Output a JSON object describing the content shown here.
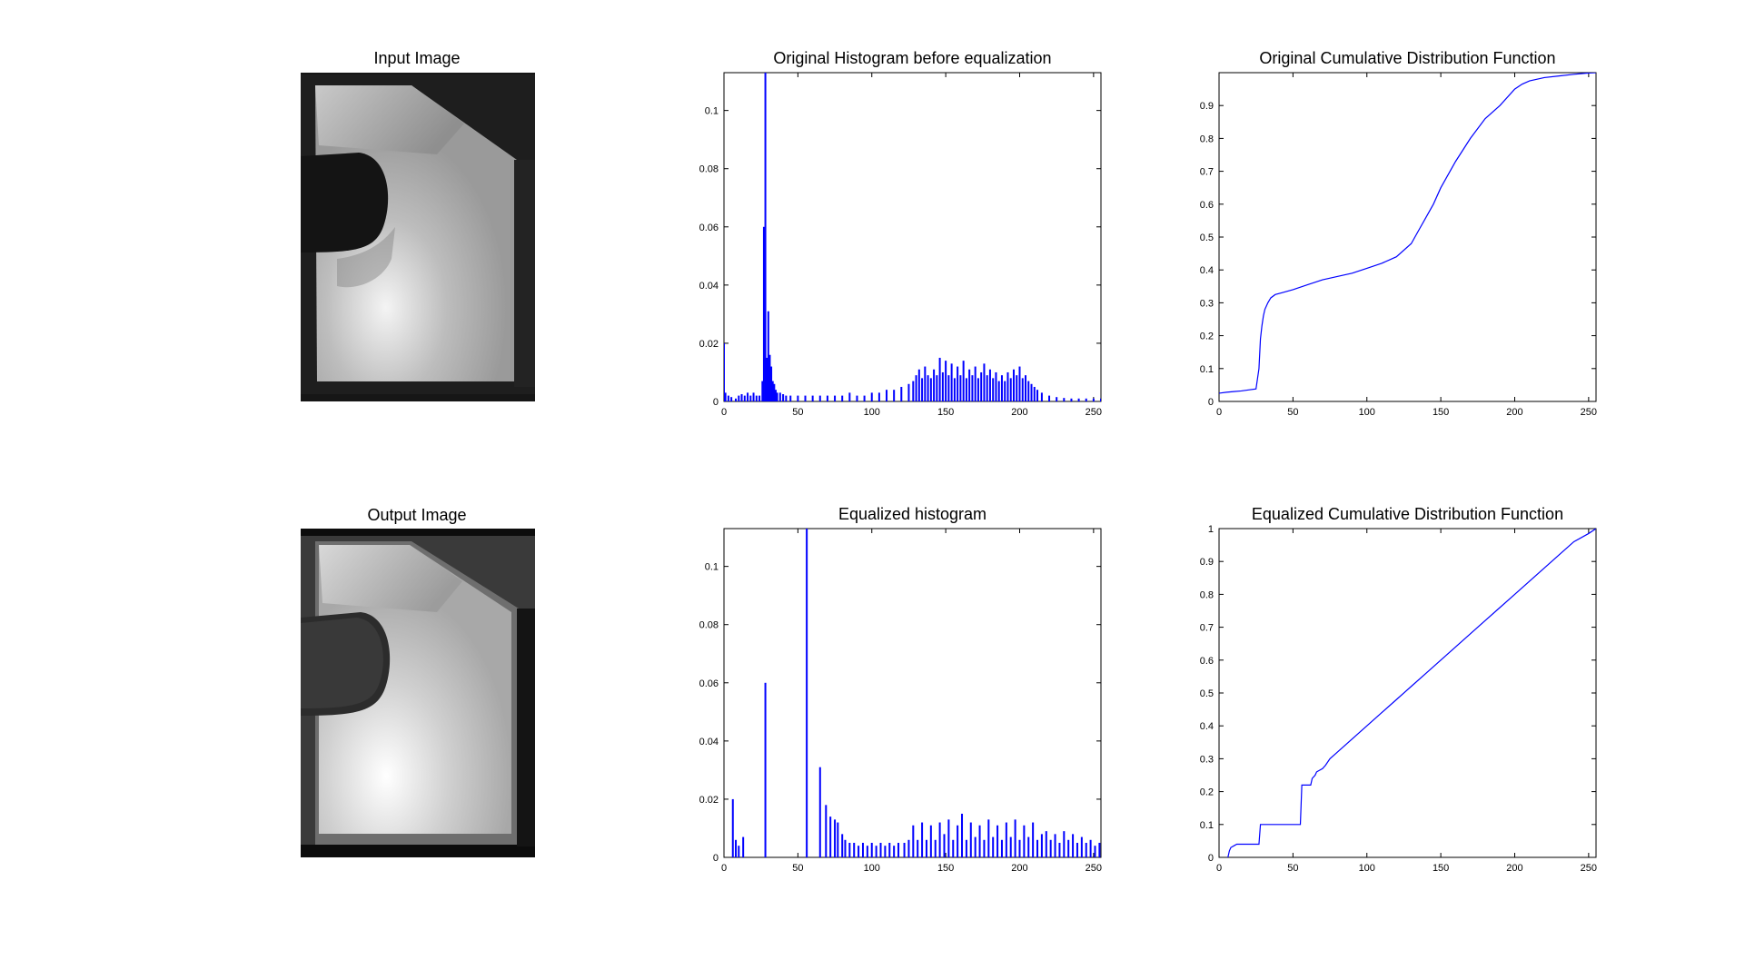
{
  "figure": {
    "panels": [
      {
        "kind": "image",
        "title": "Input Image",
        "variant": "input"
      },
      {
        "kind": "chart",
        "chart_index": 0
      },
      {
        "kind": "chart",
        "chart_index": 1
      },
      {
        "kind": "image",
        "title": "Output Image",
        "variant": "output"
      },
      {
        "kind": "chart",
        "chart_index": 2
      },
      {
        "kind": "chart",
        "chart_index": 3
      }
    ]
  },
  "colors": {
    "series": "#0000ff",
    "axis": "#000000",
    "background": "#ffffff"
  },
  "chart_data": [
    {
      "type": "bar",
      "title": "Original Histogram before equalization",
      "xlim": [
        0,
        255
      ],
      "ylim": [
        0,
        0.113
      ],
      "xticks": [
        0,
        50,
        100,
        150,
        200,
        250
      ],
      "yticks": [
        0,
        0.02,
        0.04,
        0.06,
        0.08,
        0.1
      ],
      "ytick_labels": [
        "0",
        "0.02",
        "0.04",
        "0.06",
        "0.08",
        "0.1"
      ],
      "x": [
        0,
        1,
        3,
        5,
        8,
        10,
        12,
        14,
        16,
        18,
        20,
        22,
        24,
        26,
        27,
        28,
        29,
        30,
        31,
        32,
        33,
        34,
        35,
        36,
        38,
        40,
        42,
        45,
        50,
        55,
        60,
        65,
        70,
        75,
        80,
        85,
        90,
        95,
        100,
        105,
        110,
        115,
        120,
        125,
        128,
        130,
        132,
        134,
        136,
        138,
        140,
        142,
        144,
        146,
        148,
        150,
        152,
        154,
        156,
        158,
        160,
        162,
        164,
        166,
        168,
        170,
        172,
        174,
        176,
        178,
        180,
        182,
        184,
        186,
        188,
        190,
        192,
        194,
        196,
        198,
        200,
        202,
        204,
        206,
        208,
        210,
        212,
        215,
        220,
        225,
        230,
        235,
        240,
        245,
        250,
        255
      ],
      "values": [
        0.02,
        0.003,
        0.002,
        0.0015,
        0.001,
        0.002,
        0.0025,
        0.002,
        0.003,
        0.002,
        0.003,
        0.002,
        0.002,
        0.007,
        0.06,
        0.113,
        0.015,
        0.031,
        0.016,
        0.012,
        0.007,
        0.006,
        0.004,
        0.003,
        0.003,
        0.0025,
        0.002,
        0.002,
        0.002,
        0.002,
        0.002,
        0.002,
        0.002,
        0.002,
        0.002,
        0.003,
        0.002,
        0.002,
        0.003,
        0.003,
        0.004,
        0.004,
        0.005,
        0.006,
        0.007,
        0.009,
        0.011,
        0.008,
        0.012,
        0.009,
        0.008,
        0.011,
        0.009,
        0.015,
        0.01,
        0.014,
        0.009,
        0.013,
        0.008,
        0.012,
        0.009,
        0.014,
        0.008,
        0.011,
        0.009,
        0.012,
        0.008,
        0.01,
        0.013,
        0.009,
        0.011,
        0.008,
        0.01,
        0.007,
        0.009,
        0.007,
        0.01,
        0.008,
        0.011,
        0.009,
        0.012,
        0.008,
        0.009,
        0.007,
        0.006,
        0.005,
        0.004,
        0.003,
        0.002,
        0.0015,
        0.0012,
        0.001,
        0.001,
        0.001,
        0.001,
        0.001
      ]
    },
    {
      "type": "line",
      "title": "Original Cumulative Distribution Function",
      "xlim": [
        0,
        255
      ],
      "ylim": [
        0,
        1
      ],
      "xticks": [
        0,
        50,
        100,
        150,
        200,
        250
      ],
      "yticks": [
        0,
        0.1,
        0.2,
        0.3,
        0.4,
        0.5,
        0.6,
        0.7,
        0.8,
        0.9
      ],
      "ytick_labels": [
        "0",
        "0.1",
        "0.2",
        "0.3",
        "0.4",
        "0.5",
        "0.6",
        "0.7",
        "0.8",
        "0.9"
      ],
      "x": [
        0,
        5,
        10,
        15,
        20,
        25,
        27,
        28,
        29,
        30,
        31,
        33,
        35,
        38,
        42,
        50,
        60,
        70,
        80,
        90,
        100,
        110,
        120,
        130,
        135,
        140,
        145,
        150,
        160,
        170,
        180,
        190,
        200,
        205,
        210,
        220,
        230,
        240,
        250,
        255
      ],
      "values": [
        0.025,
        0.028,
        0.03,
        0.032,
        0.035,
        0.038,
        0.1,
        0.19,
        0.23,
        0.26,
        0.28,
        0.3,
        0.315,
        0.325,
        0.33,
        0.34,
        0.355,
        0.37,
        0.38,
        0.39,
        0.405,
        0.42,
        0.44,
        0.48,
        0.52,
        0.56,
        0.6,
        0.65,
        0.73,
        0.8,
        0.86,
        0.9,
        0.95,
        0.965,
        0.975,
        0.985,
        0.99,
        0.995,
        0.999,
        1.0
      ]
    },
    {
      "type": "bar",
      "title": "Equalized histogram",
      "xlim": [
        0,
        255
      ],
      "ylim": [
        0,
        0.113
      ],
      "xticks": [
        0,
        50,
        100,
        150,
        200,
        250
      ],
      "yticks": [
        0,
        0.02,
        0.04,
        0.06,
        0.08,
        0.1
      ],
      "ytick_labels": [
        "0",
        "0.02",
        "0.04",
        "0.06",
        "0.08",
        "0.1"
      ],
      "x": [
        6,
        8,
        10,
        13,
        28,
        56,
        65,
        69,
        72,
        75,
        77,
        80,
        82,
        85,
        88,
        91,
        94,
        97,
        100,
        103,
        106,
        109,
        112,
        115,
        118,
        122,
        125,
        128,
        131,
        134,
        137,
        140,
        143,
        146,
        149,
        152,
        155,
        158,
        161,
        164,
        167,
        170,
        173,
        176,
        179,
        182,
        185,
        188,
        191,
        194,
        197,
        200,
        203,
        206,
        209,
        212,
        215,
        218,
        221,
        224,
        227,
        230,
        233,
        236,
        239,
        242,
        245,
        248,
        251,
        254
      ],
      "values": [
        0.02,
        0.006,
        0.004,
        0.007,
        0.06,
        0.113,
        0.031,
        0.018,
        0.014,
        0.013,
        0.012,
        0.008,
        0.006,
        0.005,
        0.005,
        0.004,
        0.005,
        0.004,
        0.005,
        0.004,
        0.005,
        0.004,
        0.005,
        0.004,
        0.005,
        0.005,
        0.006,
        0.011,
        0.006,
        0.012,
        0.006,
        0.011,
        0.006,
        0.012,
        0.008,
        0.013,
        0.006,
        0.011,
        0.015,
        0.006,
        0.012,
        0.007,
        0.011,
        0.006,
        0.013,
        0.007,
        0.011,
        0.006,
        0.012,
        0.007,
        0.013,
        0.006,
        0.011,
        0.007,
        0.012,
        0.006,
        0.008,
        0.009,
        0.006,
        0.008,
        0.005,
        0.009,
        0.006,
        0.008,
        0.005,
        0.007,
        0.005,
        0.006,
        0.004,
        0.005
      ]
    },
    {
      "type": "line",
      "title": "Equalized Cumulative Distribution Function",
      "xlim": [
        0,
        255
      ],
      "ylim": [
        0,
        1
      ],
      "xticks": [
        0,
        50,
        100,
        150,
        200,
        250
      ],
      "yticks": [
        0,
        0.1,
        0.2,
        0.3,
        0.4,
        0.5,
        0.6,
        0.7,
        0.8,
        0.9,
        1
      ],
      "ytick_labels": [
        "0",
        "0.1",
        "0.2",
        "0.3",
        "0.4",
        "0.5",
        "0.6",
        "0.7",
        "0.8",
        "0.9",
        "1"
      ],
      "x": [
        6,
        7,
        8,
        10,
        12,
        15,
        20,
        25,
        27,
        28,
        30,
        40,
        50,
        55,
        56,
        57,
        60,
        62,
        63,
        65,
        66,
        70,
        72,
        75,
        80,
        90,
        100,
        110,
        120,
        130,
        140,
        150,
        160,
        170,
        180,
        190,
        200,
        210,
        220,
        230,
        240,
        250,
        255
      ],
      "values": [
        0.0,
        0.02,
        0.03,
        0.035,
        0.04,
        0.04,
        0.04,
        0.04,
        0.04,
        0.1,
        0.1,
        0.1,
        0.1,
        0.1,
        0.22,
        0.22,
        0.22,
        0.22,
        0.24,
        0.25,
        0.26,
        0.27,
        0.28,
        0.3,
        0.32,
        0.36,
        0.4,
        0.44,
        0.48,
        0.52,
        0.56,
        0.6,
        0.64,
        0.68,
        0.72,
        0.76,
        0.8,
        0.84,
        0.88,
        0.92,
        0.96,
        0.985,
        1.0
      ]
    }
  ]
}
